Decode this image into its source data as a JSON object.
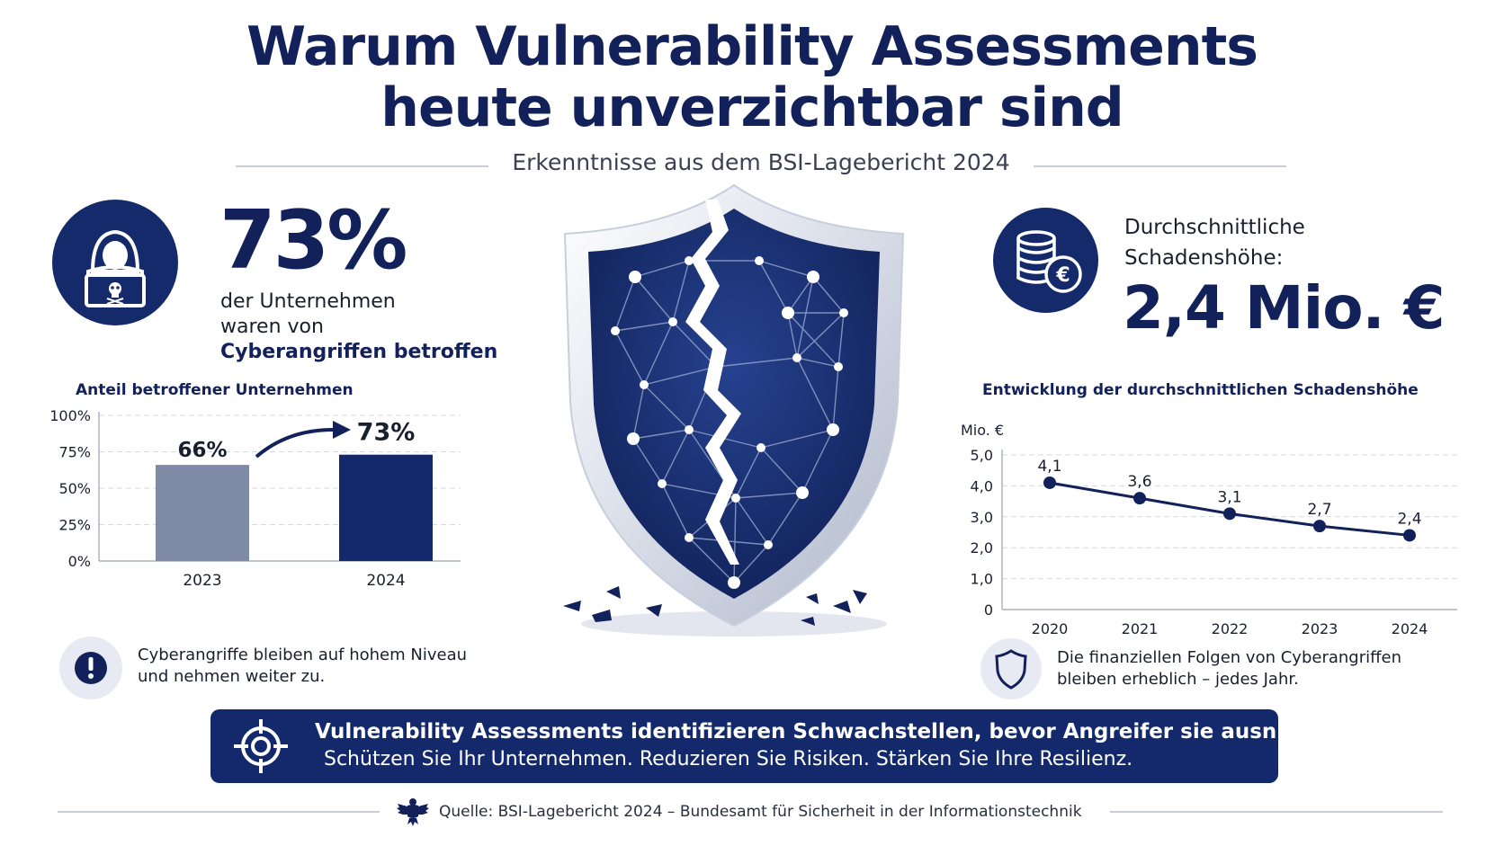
{
  "header": {
    "title_line1": "Warum Vulnerability Assessments",
    "title_line2": "heute unverzichtbar sind",
    "subtitle": "Erkenntnisse aus dem BSI-Lagebericht 2024"
  },
  "left_stat": {
    "icon": "hacker-laptop-icon",
    "value": "73%",
    "line1": "der Unternehmen",
    "line2": "waren von",
    "line3": "Cyberangriffen betroffen"
  },
  "right_stat": {
    "icon": "coins-euro-icon",
    "label_line1": "Durchschnittliche",
    "label_line2": "Schadenshöhe:",
    "value": "2,4 Mio. €"
  },
  "notes": {
    "left_icon": "exclamation-icon",
    "left_line1": "Cyberangriffe bleiben auf hohem Niveau",
    "left_line2": "und nehmen weiter zu.",
    "right_icon": "shield-icon",
    "right_line1": "Die finanziellen Folgen von Cyberangriffen",
    "right_line2": "bleiben erheblich – jedes Jahr."
  },
  "banner": {
    "icon": "target-crosshair-icon",
    "line1": "Vulnerability Assessments identifizieren Schwachstellen, bevor Angreifer sie ausnutzen.",
    "line2": "Schützen Sie Ihr Unternehmen. Reduzieren Sie Risiken. Stärken Sie Ihre Resilienz."
  },
  "footer": {
    "icon": "federal-eagle-icon",
    "source": "Quelle: BSI-Lagebericht 2024 – Bundesamt für Sicherheit in der Informationstechnik"
  },
  "colors": {
    "navy": "#13215b",
    "bar_2023": "#7f8ba6",
    "bar_2024": "#13296b",
    "grid": "#d5d9e2"
  },
  "chart_data": [
    {
      "type": "bar",
      "title": "Anteil betroffener Unternehmen",
      "categories": [
        "2023",
        "2024"
      ],
      "values": [
        66,
        73
      ],
      "data_labels": [
        "66%",
        "73%"
      ],
      "ylim": [
        0,
        100
      ],
      "yticks": [
        "0%",
        "25%",
        "50%",
        "75%",
        "100%"
      ],
      "ytick_values": [
        0,
        25,
        50,
        75,
        100
      ],
      "grid": true
    },
    {
      "type": "line",
      "title": "Entwicklung der durchschnittlichen Schadenshöhe",
      "ylabel": "Mio. €",
      "x": [
        "2020",
        "2021",
        "2022",
        "2023",
        "2024"
      ],
      "values": [
        4.1,
        3.6,
        3.1,
        2.7,
        2.4
      ],
      "data_labels": [
        "4,1",
        "3,6",
        "3,1",
        "2,7",
        "2,4"
      ],
      "ylim": [
        0,
        5
      ],
      "yticks": [
        "0",
        "1,0",
        "2,0",
        "3,0",
        "4,0",
        "5,0"
      ],
      "ytick_values": [
        0,
        1,
        2,
        3,
        4,
        5
      ],
      "grid": true
    }
  ]
}
